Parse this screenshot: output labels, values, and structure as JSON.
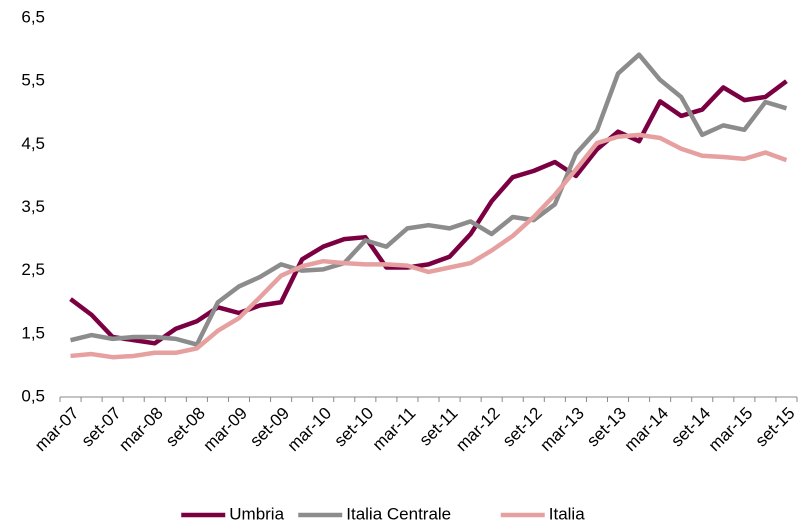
{
  "chart_data": {
    "type": "line",
    "categories": [
      "mar-07",
      null,
      "set-07",
      null,
      "mar-08",
      null,
      "set-08",
      null,
      "mar-09",
      null,
      "set-09",
      null,
      "mar-10",
      null,
      "set-10",
      null,
      "mar-11",
      null,
      "set-11",
      null,
      "mar-12",
      null,
      "set-12",
      null,
      "mar-13",
      null,
      "set-13",
      null,
      "mar-14",
      null,
      "set-14",
      null,
      "mar-15",
      null,
      "set-15"
    ],
    "series": [
      {
        "name": "Umbria",
        "color": "#7b0041",
        "values": [
          2.05,
          1.8,
          1.45,
          1.4,
          1.35,
          1.58,
          1.7,
          1.92,
          1.83,
          1.95,
          2.0,
          2.68,
          2.88,
          3.0,
          3.03,
          2.55,
          2.55,
          2.6,
          2.72,
          3.08,
          3.6,
          3.98,
          4.08,
          4.22,
          4.0,
          4.42,
          4.7,
          4.55,
          5.18,
          4.95,
          5.05,
          5.4,
          5.2,
          5.25,
          5.5
        ]
      },
      {
        "name": "Italia Centrale",
        "color": "#8c8c8c",
        "values": [
          1.4,
          1.48,
          1.42,
          1.45,
          1.45,
          1.42,
          1.33,
          2.0,
          2.25,
          2.4,
          2.6,
          2.5,
          2.52,
          2.62,
          2.98,
          2.88,
          3.17,
          3.22,
          3.17,
          3.28,
          3.08,
          3.35,
          3.3,
          3.55,
          4.35,
          4.72,
          5.62,
          5.92,
          5.52,
          5.25,
          4.65,
          4.8,
          4.73,
          5.17,
          5.07
        ]
      },
      {
        "name": "Italia",
        "color": "#e6a0a0",
        "values": [
          1.15,
          1.18,
          1.13,
          1.15,
          1.2,
          1.2,
          1.27,
          1.55,
          1.75,
          2.08,
          2.42,
          2.57,
          2.65,
          2.62,
          2.6,
          2.6,
          2.58,
          2.48,
          2.55,
          2.62,
          2.82,
          3.05,
          3.35,
          3.7,
          4.1,
          4.52,
          4.62,
          4.65,
          4.6,
          4.43,
          4.32,
          4.3,
          4.27,
          4.37,
          4.25
        ]
      }
    ],
    "ylim": [
      0.5,
      6.5
    ],
    "yticks": [
      {
        "value": 0.5,
        "label": "0,5"
      },
      {
        "value": 1.5,
        "label": "1,5"
      },
      {
        "value": 2.5,
        "label": "2,5"
      },
      {
        "value": 3.5,
        "label": "3,5"
      },
      {
        "value": 4.5,
        "label": "4,5"
      },
      {
        "value": 5.5,
        "label": "5,5"
      },
      {
        "value": 6.5,
        "label": "6,5"
      }
    ],
    "grid": false,
    "legend": "bottom"
  }
}
